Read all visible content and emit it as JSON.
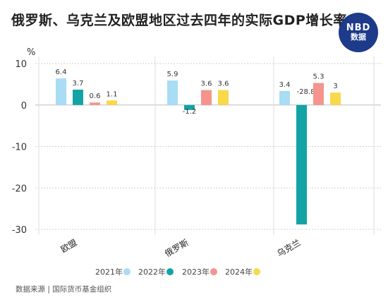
{
  "title": "俄罗斯、乌克兰及欧盟地区过去四年的实际GDP增长率",
  "logo": {
    "line1": "NBD",
    "line2": "数据"
  },
  "source": "数据来源 | 国际货币基金组织",
  "chart_data": {
    "type": "bar",
    "title": "俄罗斯、乌克兰及欧盟地区过去四年的实际GDP增长率",
    "ylabel": "%",
    "xlabel": "",
    "ylim": [
      -30,
      10
    ],
    "yticks": [
      10,
      0,
      -10,
      -20,
      -30
    ],
    "grid": true,
    "legend_position": "bottom",
    "categories": [
      "欧盟",
      "俄罗斯",
      "乌克兰"
    ],
    "series": [
      {
        "name": "2021年",
        "color": "#a9dcf5",
        "values": [
          6.4,
          5.9,
          3.4
        ],
        "labels": [
          "6.4",
          "5.9",
          "3.4"
        ]
      },
      {
        "name": "2022年",
        "color": "#13a3a5",
        "values": [
          3.7,
          -1.2,
          -28.8
        ],
        "labels": [
          "3.7",
          "-1.2",
          "-28.8"
        ]
      },
      {
        "name": "2023年",
        "color": "#f4948d",
        "values": [
          0.6,
          3.6,
          5.3
        ],
        "labels": [
          "0.6",
          "3.6",
          "5.3"
        ]
      },
      {
        "name": "2024年",
        "color": "#f9d84a",
        "values": [
          1.1,
          3.6,
          3.0
        ],
        "labels": [
          "1.1",
          "3.6",
          "3"
        ]
      }
    ]
  }
}
